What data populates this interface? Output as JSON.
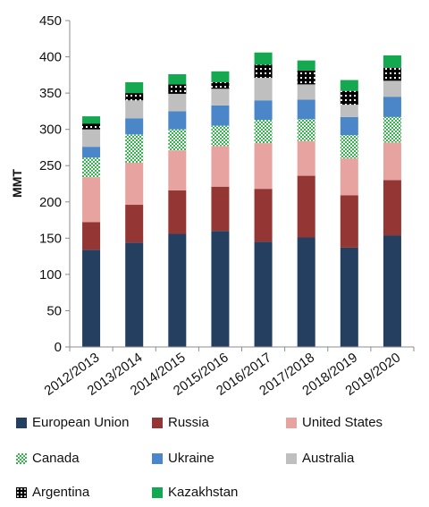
{
  "chart_data": {
    "type": "bar",
    "stacked": true,
    "categories": [
      "2012/2013",
      "2013/2014",
      "2014/2015",
      "2015/2016",
      "2016/2017",
      "2017/2018",
      "2018/2019",
      "2019/2020"
    ],
    "ylabel": "MMT",
    "ylim": [
      0,
      450
    ],
    "yticks": [
      0,
      50,
      100,
      150,
      200,
      250,
      300,
      350,
      400,
      450
    ],
    "grid": false,
    "legend_position": "bottom",
    "series": [
      {
        "name": "European Union",
        "color": "#243f60",
        "pattern": "solid",
        "values": [
          134,
          144,
          156,
          160,
          145,
          151,
          137,
          154
        ]
      },
      {
        "name": "Russia",
        "color": "#943634",
        "pattern": "solid",
        "values": [
          38,
          52,
          60,
          61,
          73,
          85,
          72,
          76
        ]
      },
      {
        "name": "United States",
        "color": "#e6a3a0",
        "pattern": "solid",
        "values": [
          62,
          58,
          55,
          56,
          63,
          48,
          51,
          52
        ]
      },
      {
        "name": "Canada",
        "color": "#33b64a",
        "pattern": "checker",
        "values": [
          27,
          39,
          29,
          28,
          32,
          30,
          32,
          35
        ]
      },
      {
        "name": "Ukraine",
        "color": "#4a86c8",
        "pattern": "solid",
        "values": [
          15,
          22,
          25,
          28,
          27,
          27,
          25,
          28
        ]
      },
      {
        "name": "Australia",
        "color": "#bfbfbf",
        "pattern": "solid",
        "values": [
          24,
          25,
          24,
          23,
          31,
          21,
          17,
          22
        ]
      },
      {
        "name": "Argentina",
        "color": "#000000",
        "pattern": "dots",
        "values": [
          8,
          10,
          13,
          9,
          18,
          19,
          19,
          18
        ]
      },
      {
        "name": "Kazakhstan",
        "color": "#14a850",
        "pattern": "solid",
        "values": [
          10,
          15,
          14,
          15,
          17,
          14,
          15,
          17
        ]
      }
    ]
  }
}
